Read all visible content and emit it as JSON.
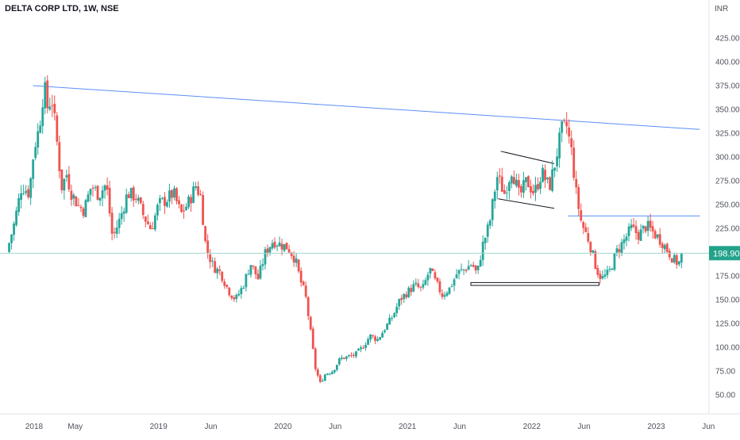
{
  "header": {
    "title": "DELTA CORP LTD, 1W, NSE",
    "currency": "INR"
  },
  "colors": {
    "up": "#26a69a",
    "down": "#ef5350",
    "trendline": "#5b8ff9",
    "pattern": "#131722",
    "last_price_bg": "#22a28a",
    "last_price_line": "#9fd8cf"
  },
  "chart_data": {
    "type": "candlestick",
    "interval": "weekly",
    "y_ticks": [
      "425.00",
      "400.00",
      "375.00",
      "350.00",
      "325.00",
      "300.00",
      "275.00",
      "250.00",
      "225.00",
      "200.00",
      "175.00",
      "150.00",
      "125.00",
      "100.00",
      "75.00",
      "50.00"
    ],
    "x_ticks": [
      {
        "label": "2018",
        "x": 2018.0
      },
      {
        "label": "May",
        "x": 2018.33
      },
      {
        "label": "2019",
        "x": 2019.0
      },
      {
        "label": "Jun",
        "x": 2019.42
      },
      {
        "label": "2020",
        "x": 2020.0
      },
      {
        "label": "Jun",
        "x": 2020.42
      },
      {
        "label": "2021",
        "x": 2021.0
      },
      {
        "label": "Jun",
        "x": 2021.42
      },
      {
        "label": "2022",
        "x": 2022.0
      },
      {
        "label": "Jun",
        "x": 2022.42
      },
      {
        "label": "2023",
        "x": 2023.0
      },
      {
        "label": "Jun",
        "x": 2023.42
      }
    ],
    "last_price": "198.90",
    "price_path": [
      [
        2017.78,
        200
      ],
      [
        2017.84,
        230
      ],
      [
        2017.9,
        270
      ],
      [
        2017.96,
        262
      ],
      [
        2018.0,
        310
      ],
      [
        2018.04,
        330
      ],
      [
        2018.08,
        375
      ],
      [
        2018.11,
        350
      ],
      [
        2018.14,
        365
      ],
      [
        2018.18,
        320
      ],
      [
        2018.22,
        268
      ],
      [
        2018.26,
        282
      ],
      [
        2018.3,
        262
      ],
      [
        2018.36,
        248
      ],
      [
        2018.4,
        244
      ],
      [
        2018.46,
        270
      ],
      [
        2018.52,
        260
      ],
      [
        2018.58,
        272
      ],
      [
        2018.63,
        215
      ],
      [
        2018.69,
        235
      ],
      [
        2018.75,
        262
      ],
      [
        2018.82,
        258
      ],
      [
        2018.88,
        238
      ],
      [
        2018.94,
        224
      ],
      [
        2019.0,
        250
      ],
      [
        2019.06,
        255
      ],
      [
        2019.12,
        262
      ],
      [
        2019.18,
        240
      ],
      [
        2019.24,
        252
      ],
      [
        2019.3,
        270
      ],
      [
        2019.34,
        258
      ],
      [
        2019.38,
        205
      ],
      [
        2019.44,
        185
      ],
      [
        2019.5,
        178
      ],
      [
        2019.56,
        160
      ],
      [
        2019.62,
        150
      ],
      [
        2019.68,
        165
      ],
      [
        2019.74,
        188
      ],
      [
        2019.8,
        172
      ],
      [
        2019.86,
        200
      ],
      [
        2019.92,
        212
      ],
      [
        2019.98,
        208
      ],
      [
        2020.04,
        205
      ],
      [
        2020.1,
        192
      ],
      [
        2020.14,
        170
      ],
      [
        2020.18,
        155
      ],
      [
        2020.22,
        118
      ],
      [
        2020.26,
        78
      ],
      [
        2020.3,
        62
      ],
      [
        2020.34,
        72
      ],
      [
        2020.4,
        75
      ],
      [
        2020.46,
        88
      ],
      [
        2020.52,
        90
      ],
      [
        2020.58,
        92
      ],
      [
        2020.64,
        100
      ],
      [
        2020.7,
        112
      ],
      [
        2020.76,
        108
      ],
      [
        2020.82,
        120
      ],
      [
        2020.88,
        132
      ],
      [
        2020.94,
        150
      ],
      [
        2021.0,
        158
      ],
      [
        2021.06,
        165
      ],
      [
        2021.12,
        160
      ],
      [
        2021.18,
        182
      ],
      [
        2021.22,
        170
      ],
      [
        2021.28,
        155
      ],
      [
        2021.34,
        162
      ],
      [
        2021.4,
        178
      ],
      [
        2021.46,
        182
      ],
      [
        2021.52,
        188
      ],
      [
        2021.56,
        176
      ],
      [
        2021.6,
        205
      ],
      [
        2021.66,
        230
      ],
      [
        2021.72,
        280
      ],
      [
        2021.78,
        262
      ],
      [
        2021.84,
        288
      ],
      [
        2021.9,
        258
      ],
      [
        2021.96,
        275
      ],
      [
        2022.02,
        262
      ],
      [
        2022.08,
        284
      ],
      [
        2022.14,
        268
      ],
      [
        2022.18,
        290
      ],
      [
        2022.24,
        328
      ],
      [
        2022.28,
        332
      ],
      [
        2022.32,
        305
      ],
      [
        2022.36,
        258
      ],
      [
        2022.4,
        230
      ],
      [
        2022.46,
        212
      ],
      [
        2022.52,
        182
      ],
      [
        2022.56,
        172
      ],
      [
        2022.62,
        178
      ],
      [
        2022.68,
        200
      ],
      [
        2022.74,
        212
      ],
      [
        2022.8,
        225
      ],
      [
        2022.86,
        218
      ],
      [
        2022.92,
        228
      ],
      [
        2022.98,
        220
      ],
      [
        2023.04,
        212
      ],
      [
        2023.1,
        200
      ],
      [
        2023.14,
        192
      ],
      [
        2023.18,
        188
      ],
      [
        2023.22,
        198.9
      ]
    ],
    "annotations": [
      {
        "kind": "trendline",
        "color": "trendline",
        "points": [
          [
            2017.99,
            375
          ],
          [
            2023.35,
            329
          ]
        ]
      },
      {
        "kind": "horizontal-ray",
        "color": "trendline",
        "points": [
          [
            2022.29,
            238
          ],
          [
            2023.35,
            238
          ]
        ]
      },
      {
        "kind": "line",
        "color": "pattern",
        "points": [
          [
            2021.75,
            306
          ],
          [
            2022.18,
            293
          ]
        ]
      },
      {
        "kind": "line",
        "color": "pattern",
        "points": [
          [
            2021.73,
            256
          ],
          [
            2022.18,
            246
          ]
        ]
      },
      {
        "kind": "rect",
        "color": "pattern",
        "points": [
          [
            2021.51,
            168
          ],
          [
            2022.54,
            165
          ]
        ]
      }
    ],
    "ylim": [
      30,
      450
    ],
    "xlim": [
      2017.8,
      2023.55
    ]
  }
}
